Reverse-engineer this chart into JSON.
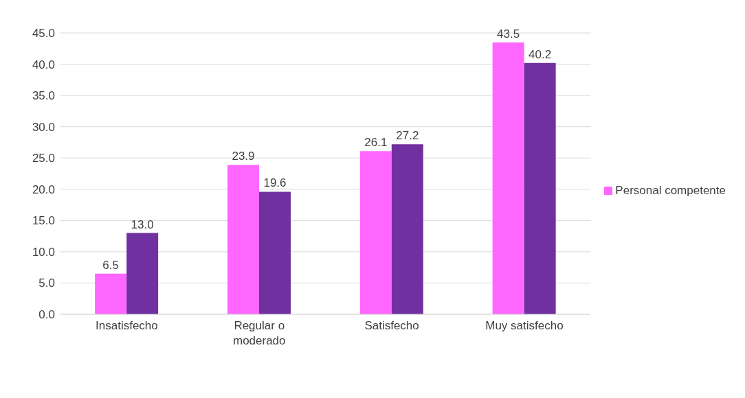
{
  "chart_data": {
    "type": "bar",
    "categories": [
      "Insatisfecho",
      "Regular o moderado",
      "Satisfecho",
      "Muy satisfecho"
    ],
    "series": [
      {
        "name": "Personal competente",
        "color": "#ff66ff",
        "values": [
          6.5,
          23.9,
          26.1,
          43.5
        ],
        "value_labels": [
          "6.5",
          "23.9",
          "26.1",
          "43.5"
        ]
      },
      {
        "color": "#7030a0",
        "values": [
          13.0,
          19.6,
          27.2,
          40.2
        ],
        "value_labels": [
          "13.0",
          "19.6",
          "27.2",
          "40.2"
        ]
      }
    ],
    "ylim": [
      0,
      45
    ],
    "yticks": [
      {
        "value": 0,
        "label": "0.0"
      },
      {
        "value": 5,
        "label": "5.0"
      },
      {
        "value": 10,
        "label": "10.0"
      },
      {
        "value": 15,
        "label": "15.0"
      },
      {
        "value": 20,
        "label": "20.0"
      },
      {
        "value": 25,
        "label": "25.0"
      },
      {
        "value": 30,
        "label": "30.0"
      },
      {
        "value": 35,
        "label": "35.0"
      },
      {
        "value": 40,
        "label": "40.0"
      },
      {
        "value": 45,
        "label": "45.0"
      }
    ],
    "grid": "y",
    "legend": "right"
  }
}
